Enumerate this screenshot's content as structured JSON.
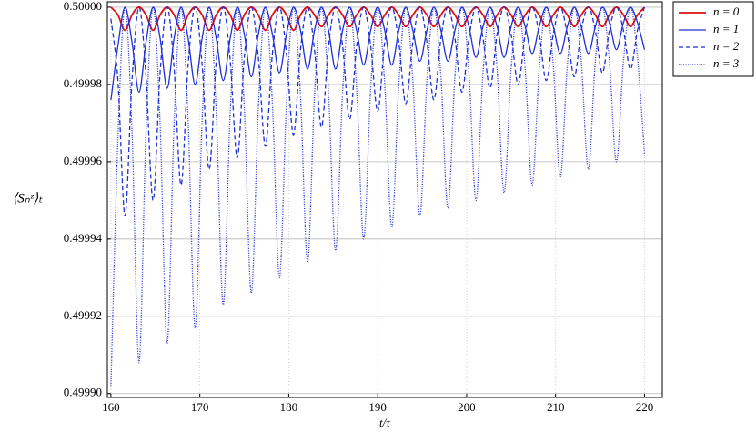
{
  "chart_data": {
    "type": "line",
    "x_label": "t/τ",
    "y_label": "⟨Sₙᶻ⟩ₜ",
    "x": [
      160,
      160.79,
      161.58,
      162.37,
      163.16,
      163.95,
      164.74,
      165.53,
      166.32,
      167.11,
      167.89,
      168.68,
      169.47,
      170.26,
      171.05,
      171.84,
      172.63,
      173.42,
      174.21,
      175,
      175.79,
      176.58,
      177.37,
      178.16,
      178.95,
      179.74,
      180.53,
      181.32,
      182.11,
      182.89,
      183.68,
      184.47,
      185.26,
      186.05,
      186.84,
      187.63,
      188.42,
      189.21,
      190,
      190.79,
      191.58,
      192.37,
      193.16,
      193.95,
      194.74,
      195.53,
      196.32,
      197.11,
      197.89,
      198.68,
      199.47,
      200.26,
      201.05,
      201.84,
      202.63,
      203.42,
      204.21,
      205,
      205.79,
      206.58,
      207.37,
      208.16,
      208.95,
      209.74,
      210.53,
      211.32,
      212.11,
      212.89,
      213.68,
      214.47,
      215.26,
      216.05,
      216.84,
      217.63,
      218.42,
      219.21,
      220
    ],
    "series": [
      {
        "name": "n = 0",
        "color": "#e01010",
        "style": "solid",
        "values": [
          0.5,
          0.499998,
          0.499994,
          0.499998,
          0.5,
          0.499998,
          0.499994,
          0.499998,
          0.5,
          0.499998,
          0.499994,
          0.499998,
          0.5,
          0.499998,
          0.499994,
          0.499998,
          0.5,
          0.499998,
          0.499994,
          0.499998,
          0.5,
          0.499998,
          0.499994,
          0.499998,
          0.5,
          0.499998,
          0.499994,
          0.499998,
          0.5,
          0.499998,
          0.499995,
          0.499998,
          0.5,
          0.499998,
          0.499995,
          0.499998,
          0.5,
          0.499998,
          0.499995,
          0.499998,
          0.5,
          0.499998,
          0.499995,
          0.499998,
          0.5,
          0.499998,
          0.499995,
          0.499998,
          0.5,
          0.499998,
          0.499995,
          0.499998,
          0.5,
          0.499998,
          0.499995,
          0.499998,
          0.5,
          0.499998,
          0.499995,
          0.499998,
          0.5,
          0.499998,
          0.499995,
          0.499998,
          0.5,
          0.499998,
          0.499995,
          0.499998,
          0.5,
          0.499998,
          0.499995,
          0.499998,
          0.5,
          0.499998,
          0.499995,
          0.499998,
          0.5
        ]
      },
      {
        "name": "n = 1",
        "color": "#1f2fd6",
        "style": "solid",
        "values": [
          0.499976,
          0.49999,
          0.5,
          0.499991,
          0.499978,
          0.499991,
          0.5,
          0.499992,
          0.499979,
          0.499992,
          0.5,
          0.499992,
          0.49998,
          0.499992,
          0.5,
          0.499992,
          0.499981,
          0.499992,
          0.5,
          0.499993,
          0.499982,
          0.499993,
          0.5,
          0.499993,
          0.499983,
          0.499993,
          0.5,
          0.499994,
          0.499984,
          0.499994,
          0.5,
          0.499994,
          0.499984,
          0.499994,
          0.5,
          0.499994,
          0.499985,
          0.499994,
          0.5,
          0.499994,
          0.499985,
          0.499994,
          0.5,
          0.499994,
          0.499986,
          0.499994,
          0.5,
          0.499994,
          0.499986,
          0.499994,
          0.5,
          0.499995,
          0.499987,
          0.499995,
          0.5,
          0.499995,
          0.499987,
          0.499995,
          0.5,
          0.499995,
          0.499988,
          0.499995,
          0.5,
          0.499995,
          0.499988,
          0.499995,
          0.5,
          0.499995,
          0.499988,
          0.499995,
          0.5,
          0.499996,
          0.499989,
          0.499996,
          0.5,
          0.499996,
          0.499989
        ]
      },
      {
        "name": "n = 2",
        "color": "#1f2fd6",
        "style": "dashed",
        "values": [
          0.499997,
          0.499981,
          0.499946,
          0.499981,
          0.5,
          0.499982,
          0.49995,
          0.499983,
          0.5,
          0.499984,
          0.499954,
          0.499985,
          0.5,
          0.499985,
          0.499958,
          0.499986,
          0.5,
          0.499986,
          0.499961,
          0.499987,
          0.5,
          0.499987,
          0.499964,
          0.499988,
          0.5,
          0.499988,
          0.499967,
          0.499989,
          0.5,
          0.499989,
          0.499969,
          0.49999,
          0.5,
          0.49999,
          0.499971,
          0.49999,
          0.5,
          0.49999,
          0.499973,
          0.499991,
          0.5,
          0.499991,
          0.499975,
          0.499991,
          0.5,
          0.499991,
          0.499976,
          0.499992,
          0.5,
          0.499992,
          0.499978,
          0.499992,
          0.5,
          0.499992,
          0.499979,
          0.499993,
          0.5,
          0.499993,
          0.49998,
          0.499993,
          0.5,
          0.499993,
          0.499981,
          0.499993,
          0.5,
          0.499993,
          0.499982,
          0.499994,
          0.5,
          0.499994,
          0.499983,
          0.499994,
          0.5,
          0.499994,
          0.499984,
          0.499994,
          0.5
        ]
      },
      {
        "name": "n = 3",
        "color": "#1f2fd6",
        "style": "dotted",
        "values": [
          0.499902,
          0.499966,
          0.5,
          0.499968,
          0.499908,
          0.499968,
          0.5,
          0.49997,
          0.499913,
          0.49997,
          0.5,
          0.499971,
          0.499917,
          0.499971,
          0.5,
          0.499973,
          0.499923,
          0.499973,
          0.5,
          0.499974,
          0.499926,
          0.499974,
          0.5,
          0.499975,
          0.49993,
          0.499975,
          0.5,
          0.499977,
          0.499934,
          0.499977,
          0.5,
          0.499978,
          0.499937,
          0.499978,
          0.5,
          0.499979,
          0.49994,
          0.499979,
          0.5,
          0.49998,
          0.499943,
          0.49998,
          0.5,
          0.499981,
          0.499946,
          0.499981,
          0.5,
          0.499982,
          0.499948,
          0.499982,
          0.5,
          0.499983,
          0.49995,
          0.499983,
          0.5,
          0.499984,
          0.499952,
          0.499984,
          0.5,
          0.499984,
          0.499954,
          0.499984,
          0.5,
          0.499985,
          0.499956,
          0.499985,
          0.5,
          0.499986,
          0.499958,
          0.499986,
          0.5,
          0.499986,
          0.49996,
          0.499986,
          0.5,
          0.499987,
          0.499962
        ]
      }
    ],
    "xlim": [
      159.6,
      222
    ],
    "ylim": [
      0.499899,
      0.5000014
    ],
    "xticks": [
      160,
      170,
      180,
      190,
      200,
      210,
      220
    ],
    "yticks": [
      {
        "value": 0.4999,
        "label": "0.49990"
      },
      {
        "value": 0.49992,
        "label": "0.49992"
      },
      {
        "value": 0.49994,
        "label": "0.49994"
      },
      {
        "value": 0.49996,
        "label": "0.49996"
      },
      {
        "value": 0.49998,
        "label": "0.49998"
      },
      {
        "value": 0.5,
        "label": "0.50000"
      }
    ],
    "grid": true,
    "legend": "outside-top-right"
  }
}
